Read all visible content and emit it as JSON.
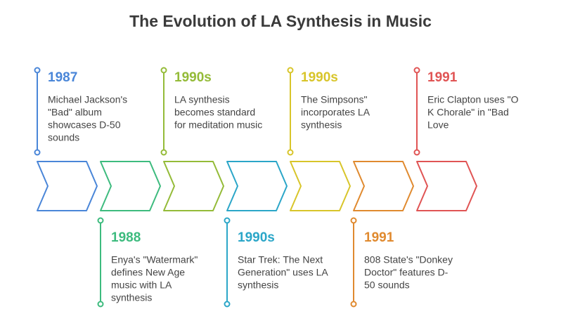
{
  "title": "The Evolution of LA Synthesis in Music",
  "events": [
    {
      "year": "1987",
      "color": "#4a86d8",
      "lines": [
        "Michael Jackson's",
        "\"Bad\" album",
        "showcases D-50",
        "sounds"
      ]
    },
    {
      "year": "1988",
      "color": "#3dbb7e",
      "lines": [
        "Enya's \"Watermark\"",
        "defines New Age",
        "music with LA",
        "synthesis"
      ]
    },
    {
      "year": "1990s",
      "color": "#94bb38",
      "lines": [
        "LA synthesis",
        "becomes standard",
        "for meditation music"
      ]
    },
    {
      "year": "1990s",
      "color": "#2ba6c8",
      "lines": [
        "Star Trek: The Next",
        "Generation\" uses LA",
        "synthesis"
      ]
    },
    {
      "year": "1990s",
      "color": "#d8c52a",
      "lines": [
        "The Simpsons\"",
        "incorporates LA",
        "synthesis"
      ]
    },
    {
      "year": "1991",
      "color": "#e08a2f",
      "lines": [
        "808 State's \"Donkey",
        "Doctor\" features D-",
        "50 sounds"
      ]
    },
    {
      "year": "1991",
      "color": "#e05454",
      "lines": [
        "Eric Clapton uses \"O",
        "K Chorale\" in \"Bad",
        "Love"
      ]
    }
  ]
}
